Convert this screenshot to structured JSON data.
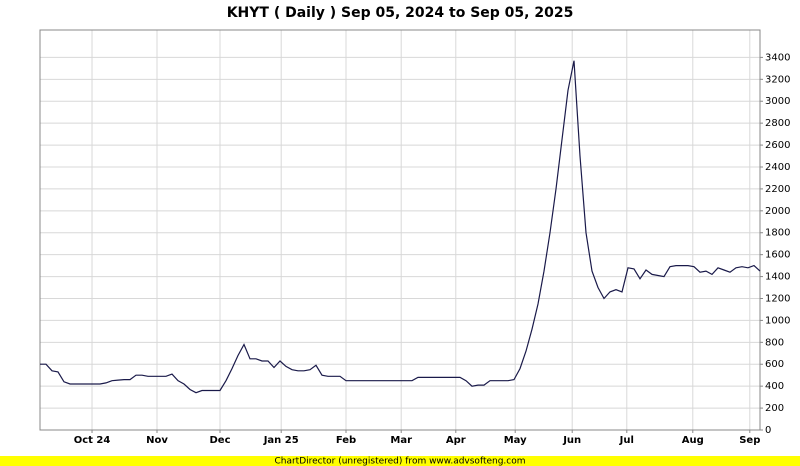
{
  "chart_data": {
    "type": "line",
    "title": "KHYT ( Daily ) Sep 05, 2024 to Sep 05, 2025",
    "footer": "ChartDirector (unregistered) from www.advsofteng.com",
    "color": "#1a1a4a",
    "values": [
      600,
      600,
      540,
      530,
      440,
      420,
      420,
      420,
      420,
      420,
      420,
      430,
      450,
      455,
      460,
      460,
      500,
      500,
      490,
      490,
      490,
      490,
      510,
      450,
      420,
      370,
      340,
      360,
      360,
      360,
      360,
      450,
      560,
      680,
      780,
      650,
      650,
      630,
      630,
      570,
      630,
      580,
      550,
      540,
      540,
      550,
      590,
      500,
      490,
      490,
      490,
      450,
      450,
      450,
      450,
      450,
      450,
      450,
      450,
      450,
      450,
      450,
      450,
      480,
      480,
      480,
      480,
      480,
      480,
      480,
      480,
      450,
      400,
      410,
      410,
      450,
      450,
      450,
      450,
      460,
      560,
      720,
      920,
      1150,
      1450,
      1800,
      2200,
      2650,
      3100,
      3370,
      2500,
      1800,
      1450,
      1300,
      1200,
      1260,
      1280,
      1260,
      1480,
      1470,
      1380,
      1460,
      1420,
      1410,
      1400,
      1490,
      1500,
      1500,
      1500,
      1490,
      1440,
      1450,
      1420,
      1480,
      1460,
      1440,
      1480,
      1490,
      1480,
      1500,
      1450
    ],
    "xlim": [
      0,
      120
    ],
    "xticks": [
      {
        "value": 8.67,
        "label": "Oct 24"
      },
      {
        "value": 19.5,
        "label": "Nov"
      },
      {
        "value": 30,
        "label": "Dec"
      },
      {
        "value": 40.2,
        "label": "Jan 25"
      },
      {
        "value": 51,
        "label": "Feb"
      },
      {
        "value": 60.2,
        "label": "Mar"
      },
      {
        "value": 69.3,
        "label": "Apr"
      },
      {
        "value": 79.2,
        "label": "May"
      },
      {
        "value": 88.7,
        "label": "Jun"
      },
      {
        "value": 97.8,
        "label": "Jul"
      },
      {
        "value": 108.8,
        "label": "Aug"
      },
      {
        "value": 118.3,
        "label": "Sep"
      }
    ],
    "ylim": [
      0,
      3650
    ],
    "yticks": [
      0,
      200,
      400,
      600,
      800,
      1000,
      1200,
      1400,
      1600,
      1800,
      2000,
      2200,
      2400,
      2600,
      2800,
      3000,
      3200,
      3400
    ],
    "grid": true
  }
}
